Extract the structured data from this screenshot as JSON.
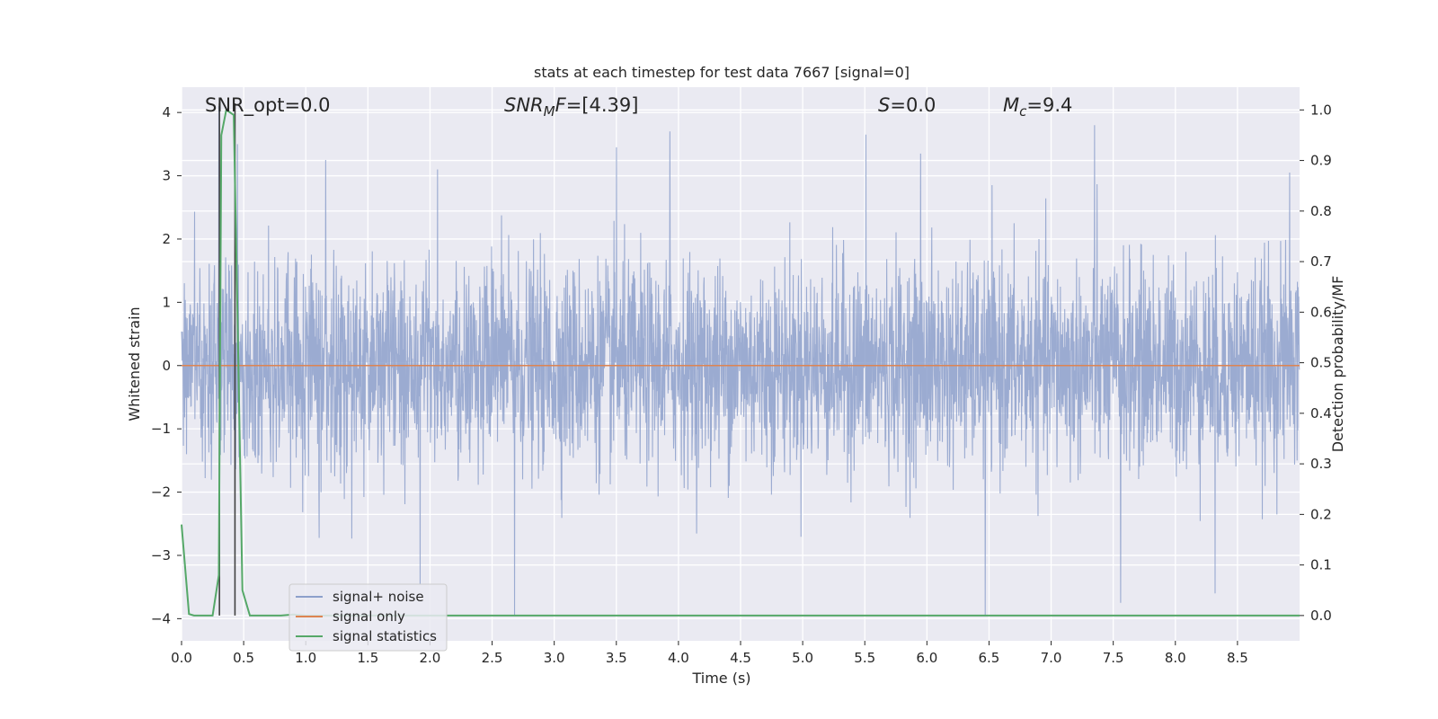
{
  "chart_data": {
    "type": "line",
    "title": "stats at each timestep for test data 7667 [signal=0]",
    "xlabel": "Time (s)",
    "ylabel_left": "Whitened strain",
    "ylabel_right": "Detection probability/MF",
    "xlim": [
      0.0,
      9.0
    ],
    "ylim_left": [
      -4.35,
      4.4
    ],
    "ylim_right": [
      -0.05,
      1.045
    ],
    "x_ticks": [
      "0.0",
      "0.5",
      "1.0",
      "1.5",
      "2.0",
      "2.5",
      "3.0",
      "3.5",
      "4.0",
      "4.5",
      "5.0",
      "5.5",
      "6.0",
      "6.5",
      "7.0",
      "7.5",
      "8.0",
      "8.5"
    ],
    "y_ticks_left": [
      "4",
      "3",
      "2",
      "1",
      "0",
      "−1",
      "−2",
      "−3",
      "−4"
    ],
    "y_ticks_right": [
      "1.0",
      "0.9",
      "0.8",
      "0.7",
      "0.6",
      "0.5",
      "0.4",
      "0.3",
      "0.2",
      "0.1",
      "0.0"
    ],
    "grid": true,
    "background": "#eaeaf2",
    "annotations": [
      {
        "name": "snr-opt",
        "text": "SNR_opt=0.0"
      },
      {
        "name": "snr-mf",
        "text": "SNR_MF=[4.39]"
      },
      {
        "name": "s-value",
        "text": "S=0.0"
      },
      {
        "name": "mc-value",
        "text": "M_c=9.4"
      }
    ],
    "legend": {
      "placement": "lower-left",
      "entries": [
        {
          "label": "signal+ noise",
          "color": "#8da0cb"
        },
        {
          "label": "signal only",
          "color": "#dd8452"
        },
        {
          "label": "signal statistics",
          "color": "#55a868"
        }
      ]
    },
    "series": [
      {
        "name": "signal+ noise",
        "axis": "left",
        "color": "#8da0cb",
        "description_stats": {
          "std": 0.8,
          "min": -3.95,
          "max": 4.1
        },
        "peaks": [
          {
            "x": 0.3,
            "y": 4.1
          },
          {
            "x": 0.45,
            "y": 3.5
          },
          {
            "x": 1.16,
            "y": 3.25
          },
          {
            "x": 2.06,
            "y": 3.1
          },
          {
            "x": 3.5,
            "y": 3.45
          },
          {
            "x": 3.93,
            "y": 3.7
          },
          {
            "x": 5.51,
            "y": 3.65
          },
          {
            "x": 5.95,
            "y": 3.35
          },
          {
            "x": 7.35,
            "y": 3.8
          },
          {
            "x": 8.92,
            "y": 3.05
          },
          {
            "x": 2.68,
            "y": -3.95
          },
          {
            "x": 6.47,
            "y": -3.95
          },
          {
            "x": 7.56,
            "y": -3.75
          },
          {
            "x": 8.32,
            "y": -3.6
          },
          {
            "x": 1.92,
            "y": -3.45
          }
        ]
      },
      {
        "name": "signal only",
        "axis": "left",
        "color": "#dd8452",
        "x": [
          0.0,
          9.0
        ],
        "y": [
          0.0,
          0.0
        ]
      },
      {
        "name": "signal statistics",
        "axis": "right",
        "color": "#55a868",
        "x": [
          0.0,
          0.06,
          0.1,
          0.25,
          0.3,
          0.32,
          0.36,
          0.42,
          0.45,
          0.49,
          0.55,
          0.7,
          0.8,
          0.9,
          1.0,
          9.0
        ],
        "y": [
          0.18,
          0.003,
          0.0,
          0.0,
          0.08,
          0.95,
          1.0,
          0.99,
          0.6,
          0.05,
          0.0,
          0.0,
          0.0,
          0.002,
          0.0,
          0.0
        ]
      }
    ],
    "vertical_lines": [
      {
        "x": 0.305,
        "color": "#404040"
      },
      {
        "x": 0.43,
        "color": "#404040"
      }
    ]
  }
}
